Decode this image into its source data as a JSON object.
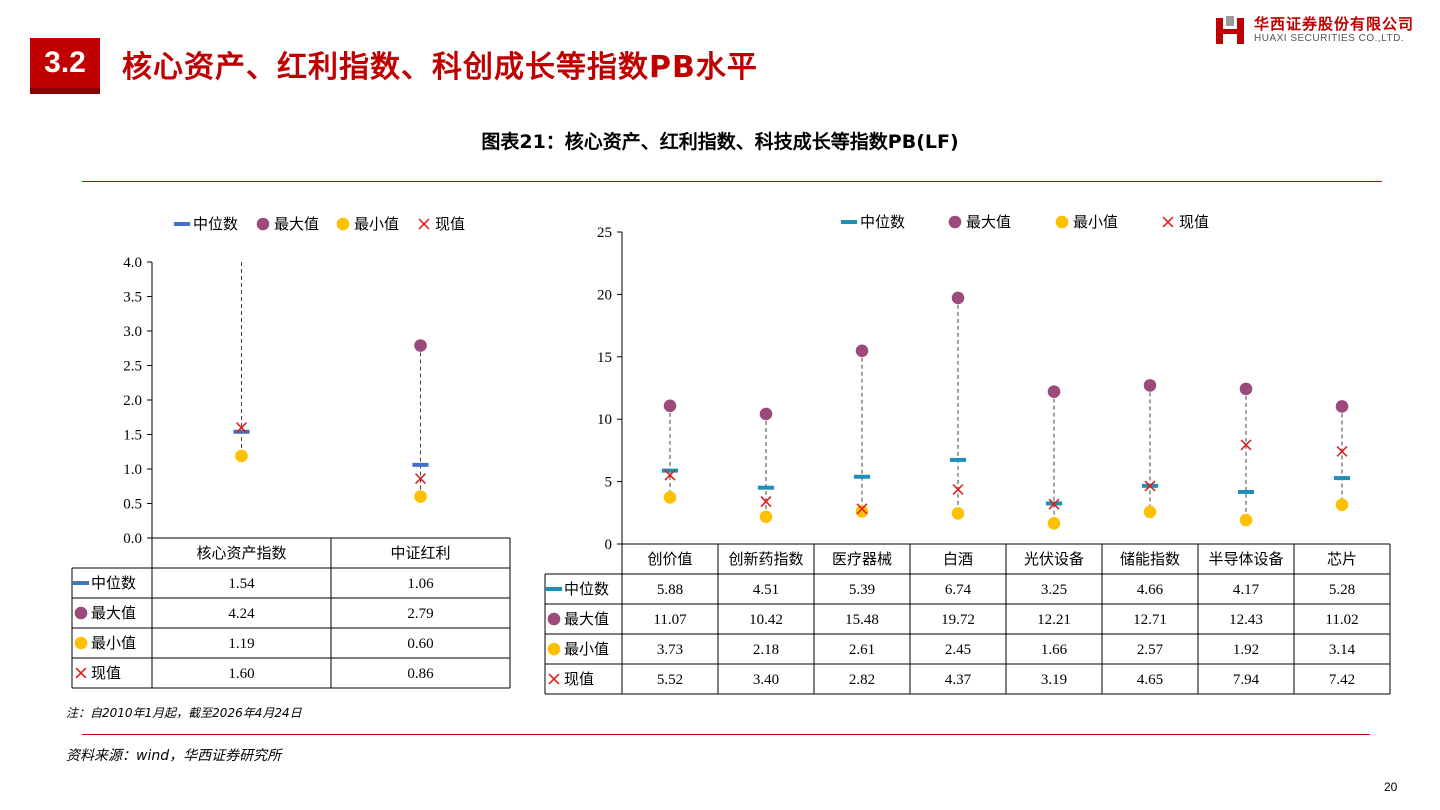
{
  "header": {
    "section_number": "3.2",
    "title": "核心资产、红利指数、科创成长等指数PB水平",
    "logo_cn": "华西证券股份有限公司",
    "logo_en": "HUAXI SECURITIES CO.,LTD."
  },
  "chart_title": "图表21：核心资产、红利指数、科技成长等指数PB(LF)",
  "note": "注：自2010年1月起，截至2026年4月24日",
  "source": "资料来源：wind，华西证券研究所",
  "page_number": "20",
  "colors": {
    "brand_red": "#c00000",
    "median": "#1f8fb5",
    "median_left": "#4472c4",
    "max": "#9b4a7b",
    "min": "#ffc000",
    "current": "#e02020"
  },
  "chart_data": [
    {
      "type": "table",
      "legend": [
        "中位数",
        "最大值",
        "最小值",
        "现值"
      ],
      "legend_placement": "top",
      "categories": [
        "核心资产指数",
        "中证红利"
      ],
      "ylim": [
        0,
        4.0
      ],
      "yticks": [
        "0.0",
        "0.5",
        "1.0",
        "1.5",
        "2.0",
        "2.5",
        "3.0",
        "3.5",
        "4.0"
      ],
      "series": [
        {
          "name": "中位数",
          "values": [
            1.54,
            1.06
          ]
        },
        {
          "name": "最大值",
          "values": [
            4.24,
            2.79
          ]
        },
        {
          "name": "最小值",
          "values": [
            1.19,
            0.6
          ]
        },
        {
          "name": "现值",
          "values": [
            1.6,
            0.86
          ]
        }
      ],
      "table_values": [
        [
          "1.54",
          "1.06"
        ],
        [
          "4.24",
          "2.79"
        ],
        [
          "1.19",
          "0.60"
        ],
        [
          "1.60",
          "0.86"
        ]
      ]
    },
    {
      "type": "table",
      "legend": [
        "中位数",
        "最大值",
        "最小值",
        "现值"
      ],
      "legend_placement": "top",
      "categories": [
        "创价值",
        "创新药指数",
        "医疗器械",
        "白酒",
        "光伏设备",
        "储能指数",
        "半导体设备",
        "芯片"
      ],
      "ylim": [
        0,
        25
      ],
      "yticks": [
        "0",
        "5",
        "10",
        "15",
        "20",
        "25"
      ],
      "series": [
        {
          "name": "中位数",
          "values": [
            5.88,
            4.51,
            5.39,
            6.74,
            3.25,
            4.66,
            4.17,
            5.28
          ]
        },
        {
          "name": "最大值",
          "values": [
            11.07,
            10.42,
            15.48,
            19.72,
            12.21,
            12.71,
            12.43,
            11.02
          ]
        },
        {
          "name": "最小值",
          "values": [
            3.73,
            2.18,
            2.61,
            2.45,
            1.66,
            2.57,
            1.92,
            3.14
          ]
        },
        {
          "name": "现值",
          "values": [
            5.52,
            3.4,
            2.82,
            4.37,
            3.19,
            4.65,
            7.94,
            7.42
          ]
        }
      ],
      "table_values": [
        [
          "5.88",
          "4.51",
          "5.39",
          "6.74",
          "3.25",
          "4.66",
          "4.17",
          "5.28"
        ],
        [
          "11.07",
          "10.42",
          "15.48",
          "19.72",
          "12.21",
          "12.71",
          "12.43",
          "11.02"
        ],
        [
          "3.73",
          "2.18",
          "2.61",
          "2.45",
          "1.66",
          "2.57",
          "1.92",
          "3.14"
        ],
        [
          "5.52",
          "3.40",
          "2.82",
          "4.37",
          "3.19",
          "4.65",
          "7.94",
          "7.42"
        ]
      ]
    }
  ]
}
